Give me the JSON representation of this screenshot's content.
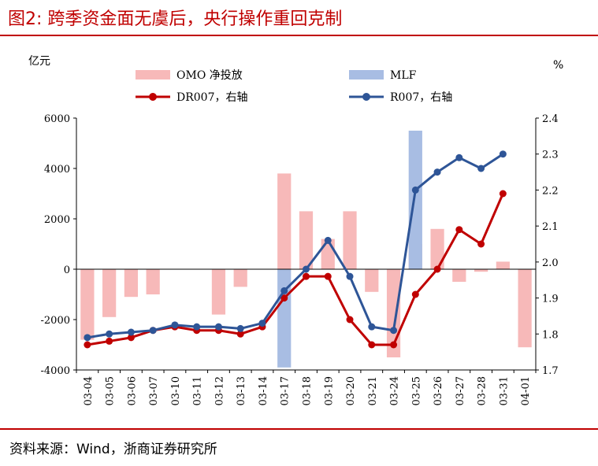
{
  "title": "图2:  跨季资金面无虞后，央行操作重回克制",
  "source": "资料来源：Wind，浙商证券研究所",
  "colors": {
    "omo": "#f7b9b9",
    "mlf": "#a8bde3",
    "dr007": "#c00000",
    "r007": "#2e5597",
    "accent": "#c00000"
  },
  "chart_data": {
    "type": "bar+line",
    "categories": [
      "03-04",
      "03-05",
      "03-06",
      "03-07",
      "03-10",
      "03-11",
      "03-12",
      "03-13",
      "03-14",
      "03-17",
      "03-18",
      "03-19",
      "03-20",
      "03-21",
      "03-24",
      "03-25",
      "03-26",
      "03-27",
      "03-28",
      "03-31",
      "04-01"
    ],
    "left_axis": {
      "unit": "亿元",
      "ylim": [
        -4000,
        6000
      ],
      "ticks": [
        "6000",
        "4000",
        "2000",
        "0",
        "-2000",
        "-4000"
      ]
    },
    "right_axis": {
      "unit": "%",
      "ylim": [
        1.7,
        2.4
      ],
      "ticks": [
        "2.4",
        "2.3",
        "2.2",
        "2.1",
        "2.0",
        "1.9",
        "1.8",
        "1.7"
      ]
    },
    "legend": [
      "OMO 净投放",
      "MLF",
      "DR007，右轴",
      "R007，右轴"
    ],
    "series": [
      {
        "name": "OMO 净投放",
        "kind": "bar",
        "axis": "left",
        "values": [
          -2800,
          -1900,
          -1100,
          -1000,
          0,
          0,
          -1800,
          -700,
          0,
          3800,
          2300,
          1200,
          2300,
          -900,
          -3500,
          1000,
          1600,
          -500,
          -100,
          300,
          -3100
        ]
      },
      {
        "name": "MLF",
        "kind": "bar",
        "axis": "left",
        "values": [
          0,
          0,
          0,
          0,
          0,
          0,
          0,
          0,
          0,
          -3900,
          0,
          0,
          0,
          0,
          0,
          5500,
          0,
          0,
          0,
          0,
          0
        ]
      },
      {
        "name": "DR007，右轴",
        "kind": "line",
        "axis": "right",
        "values": [
          1.77,
          1.78,
          1.79,
          1.81,
          1.82,
          1.81,
          1.81,
          1.8,
          1.82,
          1.9,
          1.96,
          1.96,
          1.84,
          1.77,
          1.77,
          1.91,
          1.98,
          2.09,
          2.05,
          2.19,
          null
        ]
      },
      {
        "name": "R007，右轴",
        "kind": "line",
        "axis": "right",
        "values": [
          1.79,
          1.8,
          1.805,
          1.81,
          1.825,
          1.82,
          1.82,
          1.815,
          1.83,
          1.92,
          1.98,
          2.06,
          1.96,
          1.82,
          1.81,
          2.2,
          2.25,
          2.29,
          2.26,
          2.3,
          null
        ]
      }
    ]
  }
}
